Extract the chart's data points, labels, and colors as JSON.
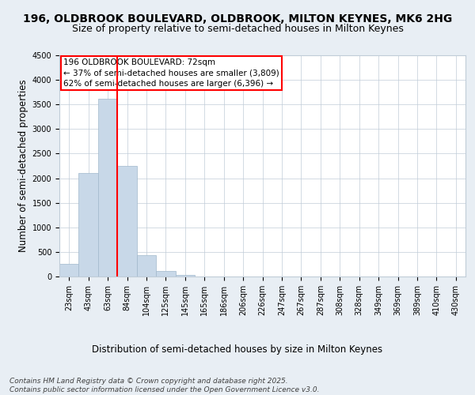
{
  "title_line1": "196, OLDBROOK BOULEVARD, OLDBROOK, MILTON KEYNES, MK6 2HG",
  "title_line2": "Size of property relative to semi-detached houses in Milton Keynes",
  "xlabel": "Distribution of semi-detached houses by size in Milton Keynes",
  "ylabel": "Number of semi-detached properties",
  "footer": "Contains HM Land Registry data © Crown copyright and database right 2025.\nContains public sector information licensed under the Open Government Licence v3.0.",
  "annotation_title": "196 OLDBROOK BOULEVARD: 72sqm",
  "annotation_line1": "← 37% of semi-detached houses are smaller (3,809)",
  "annotation_line2": "62% of semi-detached houses are larger (6,396) →",
  "bar_color": "#c8d8e8",
  "bar_edge_color": "#a0b8cc",
  "vline_color": "red",
  "vline_position": 2.5,
  "categories": [
    "23sqm",
    "43sqm",
    "63sqm",
    "84sqm",
    "104sqm",
    "125sqm",
    "145sqm",
    "165sqm",
    "186sqm",
    "206sqm",
    "226sqm",
    "247sqm",
    "267sqm",
    "287sqm",
    "308sqm",
    "328sqm",
    "349sqm",
    "369sqm",
    "389sqm",
    "410sqm",
    "430sqm"
  ],
  "values": [
    250,
    2100,
    3620,
    2250,
    440,
    110,
    40,
    5,
    0,
    0,
    0,
    0,
    0,
    0,
    0,
    0,
    0,
    0,
    0,
    0,
    0
  ],
  "ylim": [
    0,
    4500
  ],
  "yticks": [
    0,
    500,
    1000,
    1500,
    2000,
    2500,
    3000,
    3500,
    4000,
    4500
  ],
  "background_color": "#e8eef4",
  "plot_bg_color": "#ffffff",
  "grid_color": "#c0ccd8",
  "title_fontsize": 10,
  "subtitle_fontsize": 9,
  "axis_label_fontsize": 8.5,
  "tick_fontsize": 7,
  "annotation_fontsize": 7.5,
  "footer_fontsize": 6.5
}
